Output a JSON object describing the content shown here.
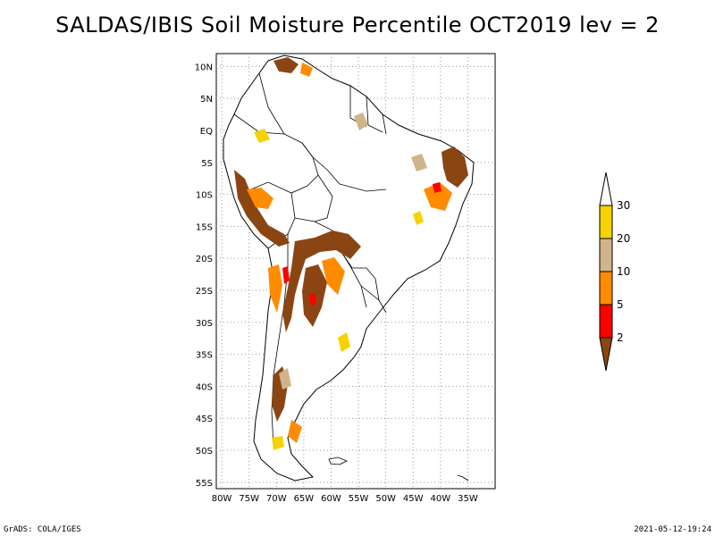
{
  "title": "SALDAS/IBIS Soil Moisture Percentile OCT2019 lev = 2",
  "map": {
    "region": "South America",
    "lon_range": [
      -80,
      -30
    ],
    "lat_range": [
      -56,
      12
    ],
    "lon_ticks": [
      "80W",
      "75W",
      "70W",
      "65W",
      "60W",
      "55W",
      "50W",
      "45W",
      "40W",
      "35W"
    ],
    "lat_ticks": [
      "10N",
      "5N",
      "EQ",
      "5S",
      "10S",
      "15S",
      "20S",
      "25S",
      "30S",
      "35S",
      "40S",
      "45S",
      "50S",
      "55S"
    ],
    "grid": "dotted",
    "land_color": "#ffffff",
    "border_color": "#000000"
  },
  "legend": {
    "labels": [
      "30",
      "20",
      "10",
      "5",
      "2"
    ],
    "colors": [
      "#ffffff",
      "#f5d200",
      "#d2b48c",
      "#ff8c00",
      "#ff0000",
      "#8b4513"
    ]
  },
  "footer": {
    "left": "GrADS: COLA/IGES",
    "right": "2021-05-12-19:24"
  }
}
